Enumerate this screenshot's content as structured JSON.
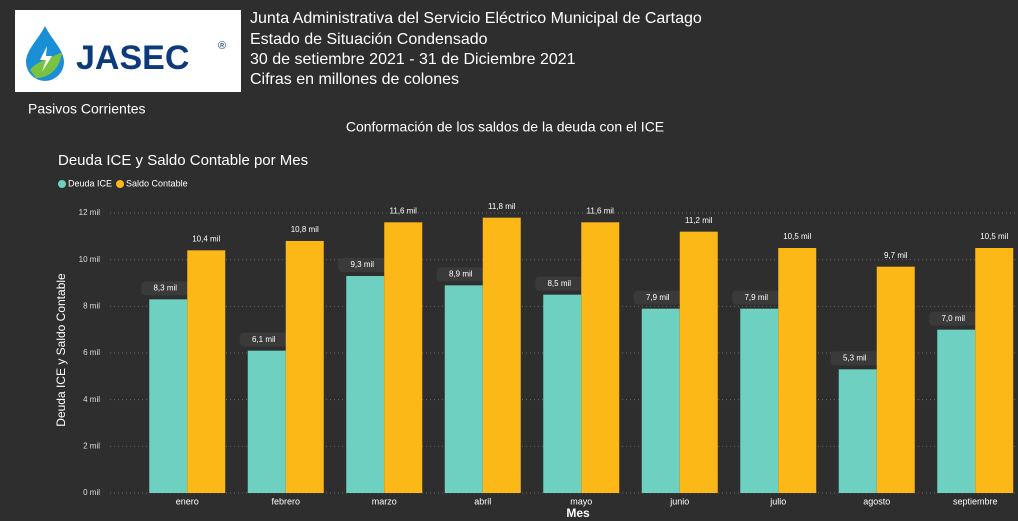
{
  "header": {
    "logo_text": "JASEC",
    "logo_mark": "®",
    "lines": [
      "Junta Administrativa del Servicio Eléctrico Municipal de Cartago",
      "Estado de Situación Condensado",
      "30 de setiembre 2021 - 31 de Diciembre 2021",
      "Cifras en millones de colones"
    ]
  },
  "section": "Pasivos Corrientes",
  "subtitle": "Conformación de los saldos de la deuda con el ICE",
  "chart_data": {
    "type": "bar",
    "title": "Deuda ICE y Saldo Contable por Mes",
    "x_label": "Mes",
    "y_label": "Deuda ICE y Saldo Contable",
    "categories": [
      "enero",
      "febrero",
      "marzo",
      "abril",
      "mayo",
      "junio",
      "julio",
      "agosto",
      "septiembre"
    ],
    "series": [
      {
        "name": "Deuda ICE",
        "color": "#6dd0c0",
        "values": [
          8300,
          6100,
          9300,
          8900,
          8500,
          7900,
          7900,
          5300,
          7000
        ],
        "value_labels": [
          "8,3 mil",
          "6,1 mil",
          "9,3 mil",
          "8,9 mil",
          "8,5 mil",
          "7,9 mil",
          "7,9 mil",
          "5,3 mil",
          "7,0 mil"
        ]
      },
      {
        "name": "Saldo Contable",
        "color": "#fbb817",
        "values": [
          10400,
          10800,
          11600,
          11800,
          11600,
          11200,
          10500,
          9700,
          10500
        ],
        "value_labels": [
          "10,4 mil",
          "10,8 mil",
          "11,6 mil",
          "11,8 mil",
          "11,6 mil",
          "11,2 mil",
          "10,5 mil",
          "9,7 mil",
          "10,5 mil"
        ]
      }
    ],
    "ylim": [
      0,
      12000
    ],
    "yticks": [
      {
        "value": 0,
        "label": "0 mil"
      },
      {
        "value": 2000,
        "label": "2 mil"
      },
      {
        "value": 4000,
        "label": "4 mil"
      },
      {
        "value": 6000,
        "label": "6 mil"
      },
      {
        "value": 8000,
        "label": "8 mil"
      },
      {
        "value": 10000,
        "label": "10 mil"
      },
      {
        "value": 12000,
        "label": "12 mil"
      }
    ],
    "grid": true,
    "legend": "top-left"
  }
}
